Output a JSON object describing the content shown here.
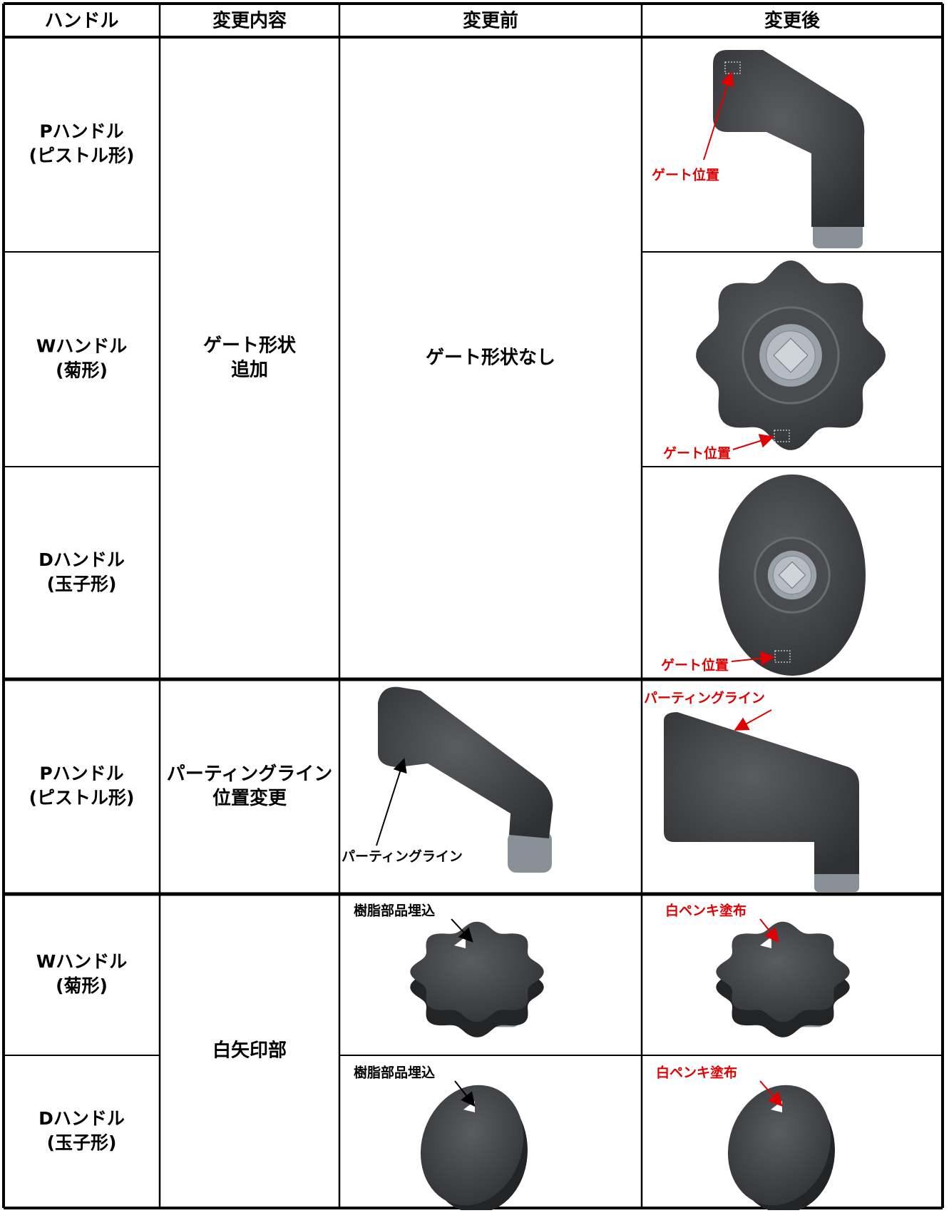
{
  "table": {
    "header": [
      "ハンドル",
      "変更内容",
      "変更前",
      "変更後"
    ],
    "rows": [
      {
        "handle": [
          "Pハンドル",
          "(ピストル形)"
        ],
        "after_note": "ゲート位置"
      },
      {
        "handle": [
          "Wハンドル",
          "(菊形)"
        ],
        "after_note": "ゲート位置"
      },
      {
        "handle": [
          "Dハンドル",
          "(玉子形)"
        ],
        "after_note": "ゲート位置"
      },
      {
        "handle": [
          "Pハンドル",
          "(ピストル形)"
        ],
        "before_note": "パーティングライン",
        "after_note": "パーティングライン"
      },
      {
        "handle": [
          "Wハンドル",
          "(菊形)"
        ],
        "before_note": "樹脂部品埋込",
        "after_note": "白ペンキ塗布"
      },
      {
        "handle": [
          "Dハンドル",
          "(玉子形)"
        ],
        "before_note": "樹脂部品埋込",
        "after_note": "白ペンキ塗布"
      }
    ],
    "changes": [
      {
        "text": [
          "ゲート形状",
          "追加"
        ],
        "before": "ゲート形状なし"
      },
      {
        "text": [
          "パーティングライン",
          "位置変更"
        ]
      },
      {
        "text": [
          "白矢印部"
        ]
      }
    ]
  }
}
